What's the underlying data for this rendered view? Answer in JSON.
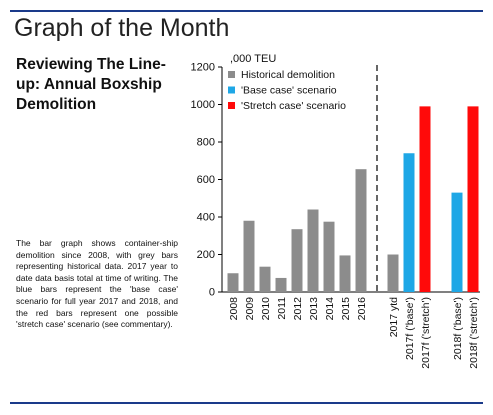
{
  "header": {
    "title": "Graph of the Month"
  },
  "article": {
    "subtitle": "Reviewing The Line-up: Annual Boxship Demolition",
    "description": "The bar graph shows container-ship demolition since 2008, with grey bars representing historical data. 2017 year to date data basis total at time of writing. The blue bars represent the 'base case' scenario for full year 2017 and 2018, and the red bars represent one possible 'stretch case' scenario (see commentary)."
  },
  "chart_data": {
    "type": "bar",
    "ylabel": ",000 TEU",
    "ylim": [
      0,
      1200
    ],
    "yticks": [
      0,
      200,
      400,
      600,
      800,
      1000,
      1200
    ],
    "grid": false,
    "legend_position": "top-left",
    "divider_after_category": "2016",
    "categories": [
      "2008",
      "2009",
      "2010",
      "2011",
      "2012",
      "2013",
      "2014",
      "2015",
      "2016",
      "2017 ytd",
      "2017f ('base')",
      "2017f ('stretch')",
      "2018f ('base')",
      "2018f ('stretch')"
    ],
    "series": [
      {
        "name": "Historical demolition",
        "color": "#8c8c8c",
        "values": [
          100,
          380,
          135,
          75,
          335,
          440,
          375,
          195,
          655,
          200,
          null,
          null,
          null,
          null
        ]
      },
      {
        "name": "'Base case' scenario",
        "color": "#1ea7e6",
        "values": [
          null,
          null,
          null,
          null,
          null,
          null,
          null,
          null,
          null,
          null,
          740,
          null,
          530,
          null
        ]
      },
      {
        "name": "'Stretch case' scenario",
        "color": "#ff0a0a",
        "values": [
          null,
          null,
          null,
          null,
          null,
          null,
          null,
          null,
          null,
          null,
          null,
          990,
          null,
          990
        ]
      }
    ]
  }
}
